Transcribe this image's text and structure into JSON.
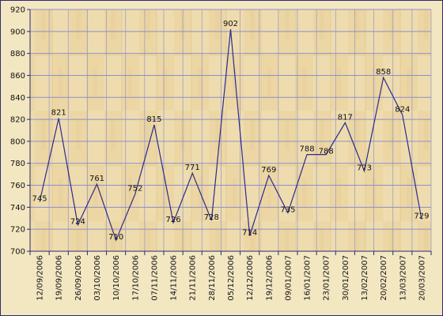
{
  "chart_data": {
    "type": "line",
    "title": "",
    "xlabel": "",
    "ylabel": "",
    "ylim": [
      700,
      920
    ],
    "yticks": [
      700,
      720,
      740,
      760,
      780,
      800,
      820,
      840,
      860,
      880,
      900,
      920
    ],
    "grid": true,
    "categories": [
      "12/09/2006",
      "19/09/2006",
      "26/09/2006",
      "03/10/2006",
      "10/10/2006",
      "17/10/2006",
      "07/11/2006",
      "14/11/2006",
      "21/11/2006",
      "28/11/2006",
      "05/12/2006",
      "12/12/2006",
      "19/12/2006",
      "09/01/2007",
      "16/01/2007",
      "23/01/2007",
      "30/01/2007",
      "13/02/2007",
      "20/02/2007",
      "13/03/2007",
      "20/03/2007"
    ],
    "series": [
      {
        "values": [
          745,
          821,
          724,
          761,
          710,
          752,
          815,
          726,
          771,
          728,
          902,
          714,
          769,
          735,
          788,
          788,
          817,
          773,
          858,
          824,
          729
        ]
      }
    ],
    "colors": {
      "line": "#2b2a8c",
      "grid": "#8b8fc8",
      "axis": "#2b2a6e",
      "background": "#f3e7c2",
      "panel": "#efdcae"
    }
  }
}
